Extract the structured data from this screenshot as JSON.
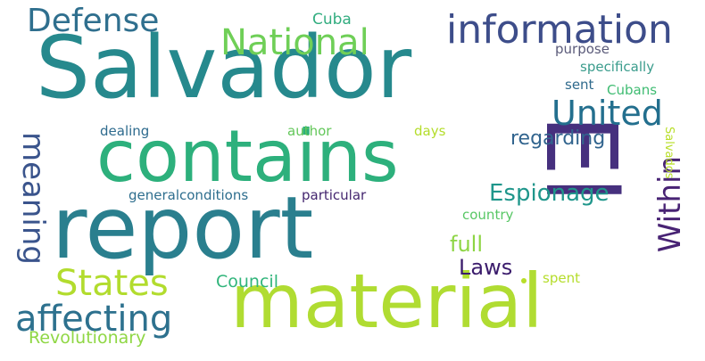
{
  "words": [
    {
      "text": "Salvador",
      "color": "#26898d"
    },
    {
      "text": "report",
      "color": "#2a7f8e"
    },
    {
      "text": "material",
      "color": "#b0dc32"
    },
    {
      "text": "contains",
      "color": "#2db07c"
    },
    {
      "text": "El",
      "color": "#46307e"
    },
    {
      "text": "information",
      "color": "#3d4d8a"
    },
    {
      "text": "Defense",
      "color": "#2f6f8e"
    },
    {
      "text": "National",
      "color": "#6fcf57"
    },
    {
      "text": "United",
      "color": "#236f8e"
    },
    {
      "text": "affecting",
      "color": "#2d718e"
    },
    {
      "text": "States",
      "color": "#b2dc2e"
    },
    {
      "text": "Espionage",
      "color": "#1f968b"
    },
    {
      "text": "meaning",
      "color": "#3a548c"
    },
    {
      "text": "Within",
      "color": "#482374"
    },
    {
      "text": "regarding",
      "color": "#31648e"
    },
    {
      "text": "Laws",
      "color": "#3b1c6c"
    },
    {
      "text": "full",
      "color": "#8dd544"
    },
    {
      "text": "Council",
      "color": "#31b57b"
    },
    {
      "text": "Revolutionary",
      "color": "#8fd744"
    },
    {
      "text": "Cuba",
      "color": "#33ad80"
    },
    {
      "text": "purpose",
      "color": "#5b5b7a"
    },
    {
      "text": "specifically",
      "color": "#3a9c8c"
    },
    {
      "text": "sent",
      "color": "#2f6a8c"
    },
    {
      "text": "Cubans",
      "color": "#3fbc72"
    },
    {
      "text": "dealing",
      "color": "#2e6b8e"
    },
    {
      "text": "author",
      "color": "#63c75a"
    },
    {
      "text": "days",
      "color": "#b4dd2b"
    },
    {
      "text": "Salvados",
      "color": "#b8de29"
    },
    {
      "text": "generalconditions",
      "color": "#2e6e8e"
    },
    {
      "text": "particular",
      "color": "#44266f"
    },
    {
      "text": "country",
      "color": "#58c765"
    },
    {
      "text": "spent",
      "color": "#b5dd2b"
    },
    {
      "text": "dot",
      "color": "#b8de29"
    }
  ]
}
